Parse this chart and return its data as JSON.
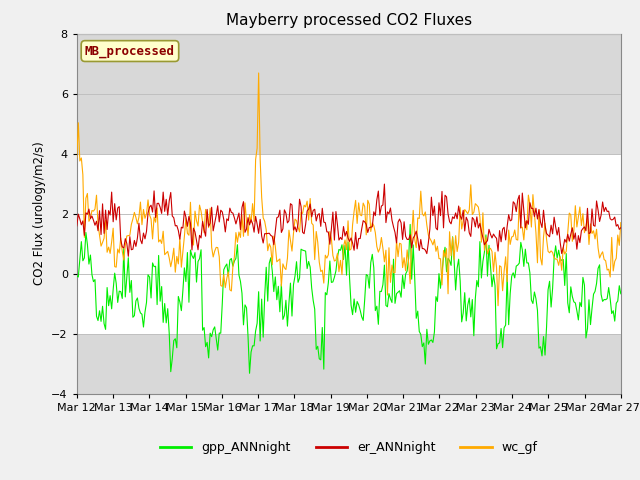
{
  "title": "Mayberry processed CO2 Fluxes",
  "ylabel": "CO2 Flux (urology/m2/s)",
  "ylim": [
    -4,
    8
  ],
  "yticks": [
    -4,
    -2,
    0,
    2,
    4,
    6,
    8
  ],
  "shaded_region": [
    -2,
    4
  ],
  "bg_color": "#f0f0f0",
  "plot_bg_color": "#d8d8d8",
  "inner_white_region": true,
  "legend_labels": [
    "gpp_ANNnight",
    "er_ANNnight",
    "wc_gf"
  ],
  "legend_colors": [
    "#00ee00",
    "#cc0000",
    "#ffaa00"
  ],
  "watermark_text": "MB_processed",
  "watermark_color": "#8b0000",
  "watermark_bg": "#ffffcc",
  "n_points": 360,
  "xticklabels": [
    "Mar 12",
    "Mar 13",
    "Mar 14",
    "Mar 15",
    "Mar 16",
    "Mar 17",
    "Mar 18",
    "Mar 19",
    "Mar 20",
    "Mar 21",
    "Mar 22",
    "Mar 23",
    "Mar 24",
    "Mar 25",
    "Mar 26",
    "Mar 27"
  ],
  "seed": 42
}
